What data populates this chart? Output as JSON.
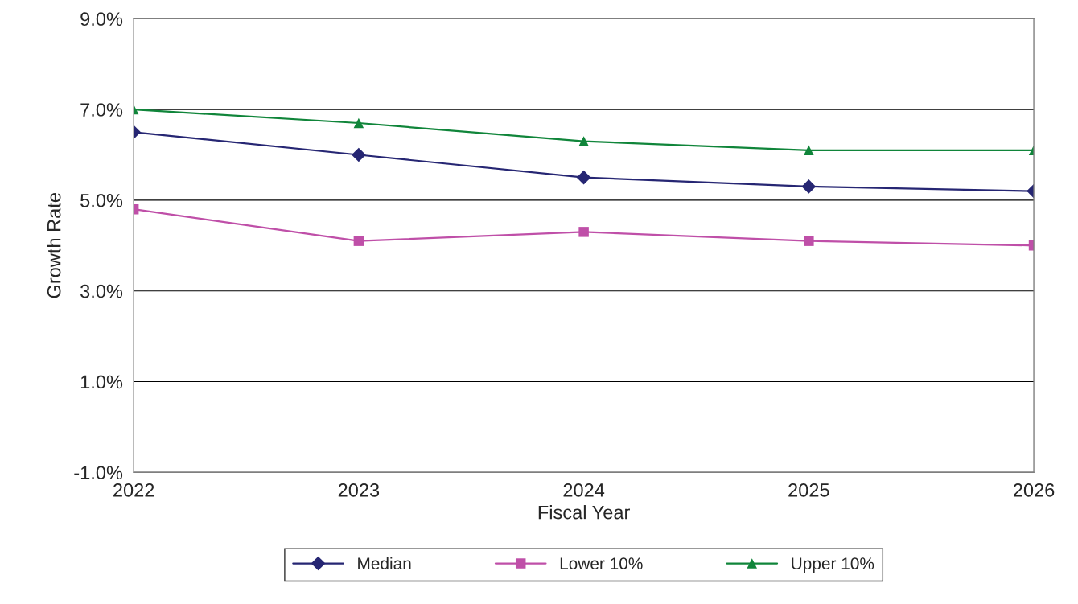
{
  "chart_data": {
    "type": "line",
    "xlabel": "Fiscal Year",
    "ylabel": "Growth Rate",
    "categories": [
      "2022",
      "2023",
      "2024",
      "2025",
      "2026"
    ],
    "series": [
      {
        "name": "Median",
        "color": "#262673",
        "marker": "diamond",
        "values": [
          6.5,
          6.0,
          5.5,
          5.3,
          5.2
        ]
      },
      {
        "name": "Lower 10%",
        "color": "#bf4fa8",
        "marker": "square",
        "values": [
          4.8,
          4.1,
          4.3,
          4.1,
          4.0
        ]
      },
      {
        "name": "Upper 10%",
        "color": "#10853a",
        "marker": "triangle",
        "values": [
          7.0,
          6.7,
          6.3,
          6.1,
          6.1
        ]
      }
    ],
    "ylim": [
      -1.0,
      9.0
    ],
    "yticks": [
      {
        "value": -1.0,
        "label": "-1.0%"
      },
      {
        "value": 1.0,
        "label": "1.0%"
      },
      {
        "value": 3.0,
        "label": "3.0%"
      },
      {
        "value": 5.0,
        "label": "5.0%"
      },
      {
        "value": 7.0,
        "label": "7.0%"
      },
      {
        "value": 9.0,
        "label": "9.0%"
      }
    ],
    "grid": "y",
    "legend": "bottom",
    "line_style": "solid"
  }
}
